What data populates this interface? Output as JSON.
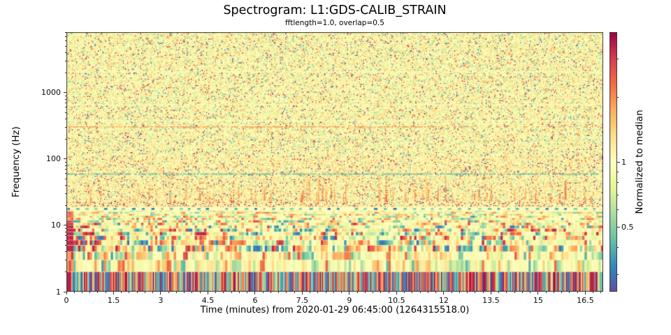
{
  "figure": {
    "background": "#ffffff",
    "border_color": "#3a3a3a"
  },
  "chart_data": {
    "type": "heatmap",
    "subtype": "spectrogram",
    "title": "Spectrogram: L1:GDS-CALIB_STRAIN",
    "subtitle": "fftlength=1.0, overlap=0.5",
    "xlabel": "Time (minutes) from 2020-01-29 06:45:00 (1264315518.0)",
    "ylabel": "Frequency (Hz)",
    "x_axis": {
      "unit": "minutes",
      "min": 0,
      "max": 17.07,
      "major_ticks": [
        {
          "v": 0,
          "label": "0"
        },
        {
          "v": 1.5,
          "label": "1.5"
        },
        {
          "v": 3,
          "label": "3"
        },
        {
          "v": 4.5,
          "label": "4.5"
        },
        {
          "v": 6,
          "label": "6"
        },
        {
          "v": 7.5,
          "label": "7.5"
        },
        {
          "v": 9,
          "label": "9"
        },
        {
          "v": 10.5,
          "label": "10.5"
        },
        {
          "v": 12,
          "label": "12"
        },
        {
          "v": 13.5,
          "label": "13.5"
        },
        {
          "v": 15,
          "label": "15"
        },
        {
          "v": 16.5,
          "label": "16.5"
        }
      ],
      "minor_tick_step": 0.25
    },
    "y_axis": {
      "scale": "log",
      "min": 1,
      "max": 8192,
      "major_ticks": [
        {
          "v": 1,
          "label": "1"
        },
        {
          "v": 10,
          "label": "10"
        },
        {
          "v": 100,
          "label": "100"
        },
        {
          "v": 1000,
          "label": "1000"
        }
      ],
      "minor_tick_decades": [
        1,
        10,
        100,
        1000
      ]
    },
    "colorbar": {
      "label": "Normalized to median",
      "scale": "log",
      "min": 0.25,
      "max": 4,
      "major_ticks": [
        {
          "v": 1,
          "label": "1"
        },
        {
          "v": 0.5,
          "label": "0.5"
        }
      ],
      "minor_ticks": [
        0.3,
        0.4,
        0.6,
        0.7,
        0.8,
        0.9,
        2,
        3
      ],
      "colormap": "Spectral_r",
      "colormap_stops_low_to_high": [
        "#5e4fa2",
        "#3288bd",
        "#66c2a5",
        "#abdda4",
        "#e6f598",
        "#ffffbf",
        "#fee08b",
        "#fdae61",
        "#f46d43",
        "#d53e4f",
        "#9e0142"
      ]
    },
    "features": {
      "power_line_hz": 60,
      "narrow_line_hz": 310,
      "faint_line_hz": 190,
      "pale_lines_hz": [
        2100,
        670,
        385
      ],
      "quiet_band_hz": [
        16.5,
        19
      ],
      "striped_band_hz": [
        1,
        16.5
      ],
      "transient_band_hz": [
        24,
        95
      ],
      "description": [
        "speckled near-median noise above 20 Hz",
        "teal below-median narrow line at 60 Hz",
        "orange above-median narrow line near 310 Hz",
        "quiet pale band ~17-19 Hz with periodic teal dashes",
        "strong non-stationary vertical stripes below 16 Hz (1 Hz bands)",
        "orange vertical transients 25-90 Hz, denser after ~7 min",
        "loud dark-red patch at t=0 below 10 Hz"
      ]
    },
    "noise_seed": 42
  }
}
